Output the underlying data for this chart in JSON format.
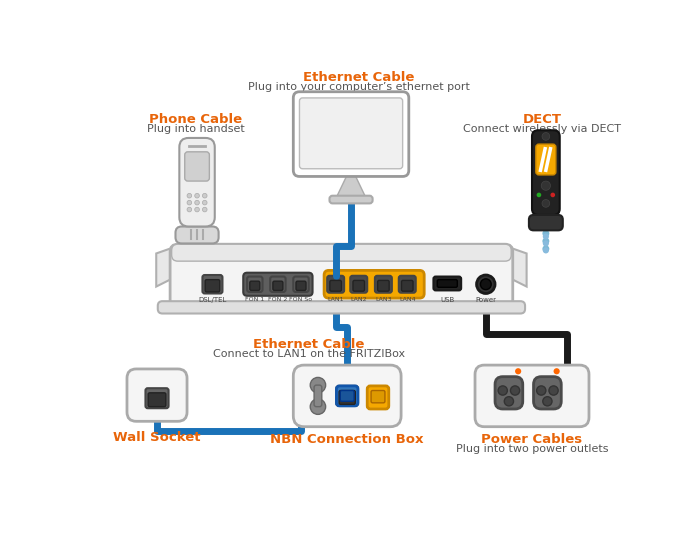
{
  "bg_color": "#ffffff",
  "orange": "#e8650a",
  "blue": "#1a72b8",
  "light_blue_dot": "#7ab8d4",
  "gray_port": "#666666",
  "dark_port": "#555555",
  "yellow": "#f5a800",
  "router_face": "#f0f0f0",
  "router_edge": "#aaaaaa",
  "router_wing": "#e0e0e0",
  "cable_gray": "#c0c0c0",
  "cable_black": "#1a1a1a",
  "labels": {
    "eth_top_bold": "Ethernet Cable",
    "eth_top_sub": "Plug into your computer’s ethernet port",
    "phone_bold": "Phone Cable",
    "phone_sub": "Plug into handset",
    "dect_bold": "DECT",
    "dect_sub": "Connect wirelessly via DECT",
    "eth_bot_bold": "Ethernet Cable",
    "eth_bot_sub": "Connect to LAN1 on the FRITZIBox",
    "wall": "Wall Socket",
    "nbn": "NBN Connection Box",
    "power_bold": "Power Cables",
    "power_sub": "Plug into two power outlets"
  }
}
